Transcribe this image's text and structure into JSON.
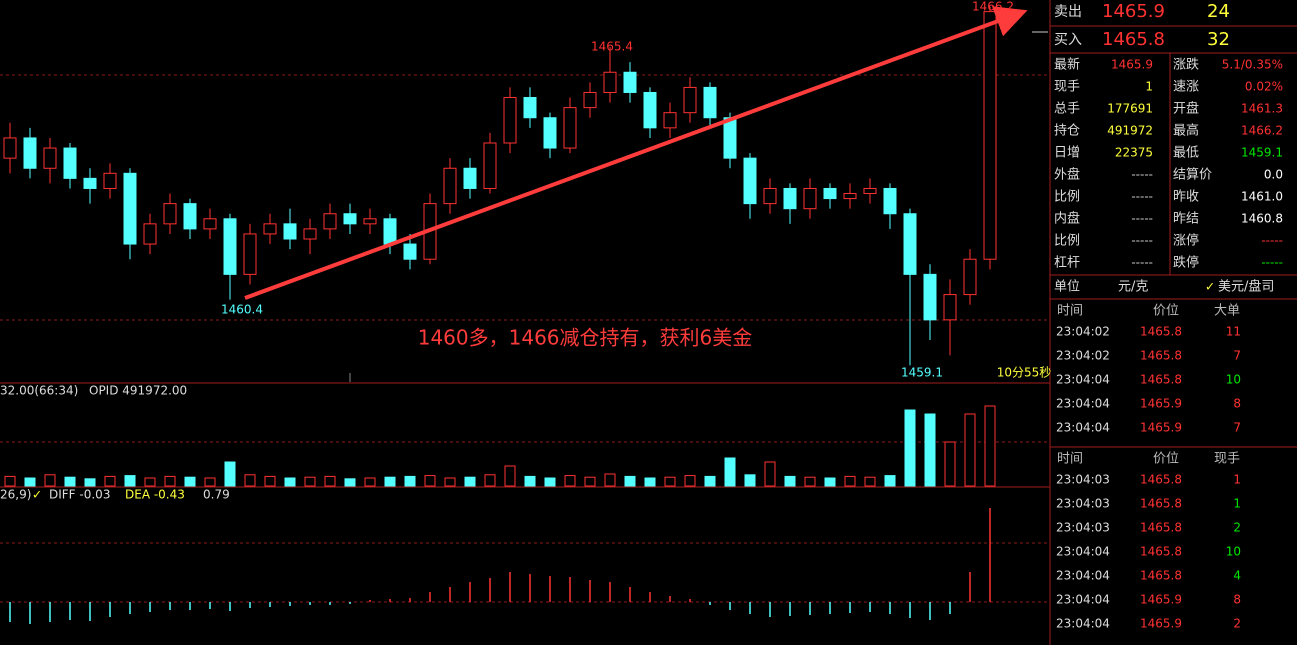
{
  "chart": {
    "ylim": [
      1458.77,
      1466.33
    ],
    "annotations": {
      "high_last": "1466.2",
      "high_mid": "1465.4",
      "low_left": "1460.4",
      "low_right": "1459.1",
      "timer": "10分55秒",
      "note": "1460多，1466减仓持有，获利6美金"
    },
    "candles": [
      [
        1463.2,
        1463.9,
        1462.9,
        1463.6
      ],
      [
        1463.6,
        1463.8,
        1462.8,
        1463.0
      ],
      [
        1463.0,
        1463.6,
        1462.7,
        1463.4
      ],
      [
        1463.4,
        1463.5,
        1462.6,
        1462.8
      ],
      [
        1462.8,
        1463.0,
        1462.3,
        1462.6
      ],
      [
        1462.6,
        1463.1,
        1462.4,
        1462.9
      ],
      [
        1462.9,
        1463.0,
        1461.2,
        1461.5
      ],
      [
        1461.5,
        1462.1,
        1461.3,
        1461.9
      ],
      [
        1461.9,
        1462.5,
        1461.7,
        1462.3
      ],
      [
        1462.3,
        1462.4,
        1461.6,
        1461.8
      ],
      [
        1461.8,
        1462.2,
        1461.6,
        1462.0
      ],
      [
        1462.0,
        1462.1,
        1460.4,
        1460.9
      ],
      [
        1460.9,
        1461.9,
        1460.7,
        1461.7
      ],
      [
        1461.7,
        1462.1,
        1461.5,
        1461.9
      ],
      [
        1461.9,
        1462.2,
        1461.4,
        1461.6
      ],
      [
        1461.6,
        1462.0,
        1461.3,
        1461.8
      ],
      [
        1461.8,
        1462.3,
        1461.6,
        1462.1
      ],
      [
        1462.1,
        1462.3,
        1461.7,
        1461.9
      ],
      [
        1461.9,
        1462.2,
        1461.7,
        1462.0
      ],
      [
        1462.0,
        1462.1,
        1461.3,
        1461.5
      ],
      [
        1461.5,
        1461.7,
        1461.0,
        1461.2
      ],
      [
        1461.2,
        1462.5,
        1461.1,
        1462.3
      ],
      [
        1462.3,
        1463.2,
        1462.1,
        1463.0
      ],
      [
        1463.0,
        1463.2,
        1462.4,
        1462.6
      ],
      [
        1462.6,
        1463.7,
        1462.5,
        1463.5
      ],
      [
        1463.5,
        1464.6,
        1463.3,
        1464.4
      ],
      [
        1464.4,
        1464.6,
        1463.8,
        1464.0
      ],
      [
        1464.0,
        1464.1,
        1463.2,
        1463.4
      ],
      [
        1463.4,
        1464.4,
        1463.3,
        1464.2
      ],
      [
        1464.2,
        1464.7,
        1464.0,
        1464.5
      ],
      [
        1464.5,
        1465.4,
        1464.3,
        1464.9
      ],
      [
        1464.9,
        1465.1,
        1464.3,
        1464.5
      ],
      [
        1464.5,
        1464.6,
        1463.6,
        1463.8
      ],
      [
        1463.8,
        1464.3,
        1463.6,
        1464.1
      ],
      [
        1464.1,
        1464.8,
        1463.9,
        1464.6
      ],
      [
        1464.6,
        1464.7,
        1463.8,
        1464.0
      ],
      [
        1464.0,
        1464.1,
        1463.0,
        1463.2
      ],
      [
        1463.2,
        1463.3,
        1462.0,
        1462.3
      ],
      [
        1462.3,
        1462.8,
        1462.1,
        1462.6
      ],
      [
        1462.6,
        1462.7,
        1461.9,
        1462.2
      ],
      [
        1462.2,
        1462.8,
        1462.0,
        1462.6
      ],
      [
        1462.6,
        1462.7,
        1462.2,
        1462.4
      ],
      [
        1462.4,
        1462.7,
        1462.2,
        1462.5
      ],
      [
        1462.5,
        1462.8,
        1462.3,
        1462.6
      ],
      [
        1462.6,
        1462.7,
        1461.8,
        1462.1
      ],
      [
        1462.1,
        1462.2,
        1459.1,
        1460.9
      ],
      [
        1460.9,
        1461.1,
        1459.6,
        1460.0
      ],
      [
        1460.0,
        1460.8,
        1459.3,
        1460.5
      ],
      [
        1460.5,
        1461.4,
        1460.3,
        1461.2
      ],
      [
        1461.2,
        1466.2,
        1461.0,
        1466.1
      ]
    ],
    "volume_label": "32.00(66:34)",
    "opid_label": "OPID 491972.00",
    "volumes": [
      12,
      10,
      14,
      11,
      9,
      12,
      13,
      10,
      12,
      11,
      10,
      30,
      14,
      12,
      10,
      11,
      12,
      9,
      10,
      11,
      12,
      13,
      10,
      11,
      14,
      25,
      12,
      10,
      13,
      11,
      15,
      12,
      10,
      11,
      13,
      12,
      35,
      14,
      30,
      12,
      11,
      10,
      12,
      11,
      13,
      95,
      90,
      55,
      90,
      100
    ],
    "volume_ylim": [
      0,
      100
    ],
    "macd_label": "26,9)",
    "diff_label": "DIFF -0.03",
    "dea_label": "DEA -0.43",
    "macd_value": "0.79",
    "macd": [
      -0.2,
      -0.22,
      -0.2,
      -0.18,
      -0.19,
      -0.15,
      -0.12,
      -0.1,
      -0.08,
      -0.08,
      -0.07,
      -0.09,
      -0.06,
      -0.05,
      -0.04,
      -0.03,
      -0.03,
      -0.02,
      0.02,
      0.03,
      0.04,
      0.1,
      0.15,
      0.2,
      0.24,
      0.3,
      0.28,
      0.26,
      0.25,
      0.22,
      0.2,
      0.15,
      0.1,
      0.06,
      0.03,
      -0.03,
      -0.08,
      -0.12,
      -0.15,
      -0.14,
      -0.13,
      -0.12,
      -0.11,
      -0.1,
      -0.12,
      -0.16,
      -0.18,
      -0.12,
      0.3,
      0.94
    ],
    "macd_ylim": [
      -0.43,
      0.94
    ]
  },
  "panel": {
    "ask": {
      "label": "卖出",
      "price": "1465.9",
      "qty": "24"
    },
    "bid": {
      "label": "买入",
      "price": "1465.8",
      "qty": "32"
    },
    "stats": [
      {
        "l1": "最新",
        "v1": "1465.9",
        "c1": "#ff3232",
        "l2": "涨跌",
        "v2": "5.1/0.35%",
        "c2": "#ff3232"
      },
      {
        "l1": "现手",
        "v1": "1",
        "c1": "#ffff3c",
        "l2": "速涨",
        "v2": "0.02%",
        "c2": "#ff3232"
      },
      {
        "l1": "总手",
        "v1": "177691",
        "c1": "#ffff3c",
        "l2": "开盘",
        "v2": "1461.3",
        "c2": "#ff3232"
      },
      {
        "l1": "持仓",
        "v1": "491972",
        "c1": "#ffff3c",
        "l2": "最高",
        "v2": "1466.2",
        "c2": "#ff3232"
      },
      {
        "l1": "日增",
        "v1": "22375",
        "c1": "#ffff3c",
        "l2": "最低",
        "v2": "1459.1",
        "c2": "#00e600"
      },
      {
        "l1": "外盘",
        "v1": "-----",
        "c1": "#c8c8c8",
        "l2": "结算价",
        "v2": "0.0",
        "c2": "#ffffff"
      },
      {
        "l1": "比例",
        "v1": "-----",
        "c1": "#c8c8c8",
        "l2": "昨收",
        "v2": "1461.0",
        "c2": "#ffffff"
      },
      {
        "l1": "内盘",
        "v1": "-----",
        "c1": "#c8c8c8",
        "l2": "昨结",
        "v2": "1460.8",
        "c2": "#ffffff"
      },
      {
        "l1": "比例",
        "v1": "-----",
        "c1": "#c8c8c8",
        "l2": "涨停",
        "v2": "-----",
        "c2": "#ff3232"
      },
      {
        "l1": "杠杆",
        "v1": "-----",
        "c1": "#c8c8c8",
        "l2": "跌停",
        "v2": "-----",
        "c2": "#00e600"
      }
    ],
    "unit": {
      "label": "单位",
      "value": "元/克",
      "alt": "美元/盘司"
    },
    "big_orders": {
      "header": [
        "时间",
        "价位",
        "大单"
      ],
      "rows": [
        {
          "t": "23:04:02",
          "p": "1465.8",
          "q": "11",
          "c": "#ff3232"
        },
        {
          "t": "23:04:02",
          "p": "1465.8",
          "q": "7",
          "c": "#ff3232"
        },
        {
          "t": "23:04:04",
          "p": "1465.8",
          "q": "10",
          "c": "#00e600"
        },
        {
          "t": "23:04:04",
          "p": "1465.9",
          "q": "8",
          "c": "#ff3232"
        },
        {
          "t": "23:04:04",
          "p": "1465.9",
          "q": "7",
          "c": "#ff3232"
        }
      ]
    },
    "ticks": {
      "header": [
        "时间",
        "价位",
        "现手"
      ],
      "rows": [
        {
          "t": "23:04:03",
          "p": "1465.8",
          "q": "1",
          "c": "#ff3232"
        },
        {
          "t": "23:04:03",
          "p": "1465.8",
          "q": "1",
          "c": "#00e600"
        },
        {
          "t": "23:04:03",
          "p": "1465.8",
          "q": "2",
          "c": "#00e600"
        },
        {
          "t": "23:04:04",
          "p": "1465.8",
          "q": "10",
          "c": "#00e600"
        },
        {
          "t": "23:04:04",
          "p": "1465.8",
          "q": "4",
          "c": "#00e600"
        },
        {
          "t": "23:04:04",
          "p": "1465.9",
          "q": "8",
          "c": "#ff3232"
        },
        {
          "t": "23:04:04",
          "p": "1465.9",
          "q": "2",
          "c": "#ff3232"
        }
      ]
    }
  }
}
